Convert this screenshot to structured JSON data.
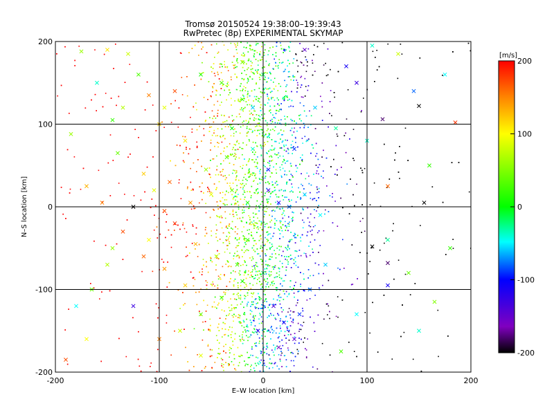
{
  "chart_data": {
    "type": "scatter",
    "title": "Tromsø 20150524 19:38:00–19:39:43",
    "subtitle": "RwPretec (8p) EXPERIMENTAL SKYMAP",
    "xlabel": "E–W location [km]",
    "ylabel": "N–S location [km]",
    "xlim": [
      -200,
      200
    ],
    "ylim": [
      -200,
      200
    ],
    "x_ticks": [
      "-200",
      "-100",
      "0",
      "100",
      "200"
    ],
    "y_ticks": [
      "-200",
      "-100",
      "0",
      "100",
      "200"
    ],
    "grid": true,
    "colorbar": {
      "label": "[m/s]",
      "range": [
        -200,
        200
      ],
      "ticks": [
        "200",
        "100",
        "0",
        "-100",
        "-200"
      ],
      "colors": [
        "#000000",
        "#8000c0",
        "#0000ff",
        "#00ffff",
        "#00ff00",
        "#ffff00",
        "#ff8000",
        "#ff0000"
      ]
    },
    "series": [
      {
        "marker": "x",
        "points": [
          [
            -130,
            185,
            80
          ],
          [
            -150,
            190,
            110
          ],
          [
            -175,
            188,
            60
          ],
          [
            -160,
            150,
            -40
          ],
          [
            -145,
            105,
            20
          ],
          [
            -185,
            88,
            60
          ],
          [
            -120,
            160,
            30
          ],
          [
            -110,
            135,
            150
          ],
          [
            -95,
            120,
            90
          ],
          [
            -85,
            140,
            170
          ],
          [
            -60,
            160,
            10
          ],
          [
            -40,
            150,
            30
          ],
          [
            -20,
            130,
            20
          ],
          [
            -10,
            120,
            -60
          ],
          [
            -100,
            100,
            120
          ],
          [
            -140,
            65,
            40
          ],
          [
            -170,
            25,
            130
          ],
          [
            -155,
            5,
            150
          ],
          [
            -125,
            0,
            -200
          ],
          [
            -105,
            20,
            90
          ],
          [
            -90,
            30,
            160
          ],
          [
            -70,
            5,
            140
          ],
          [
            -50,
            15,
            90
          ],
          [
            -30,
            20,
            40
          ],
          [
            -15,
            5,
            10
          ],
          [
            5,
            20,
            -130
          ],
          [
            15,
            5,
            -110
          ],
          [
            25,
            0,
            -80
          ],
          [
            40,
            15,
            -60
          ],
          [
            55,
            -10,
            -50
          ],
          [
            -135,
            -30,
            170
          ],
          [
            -145,
            -50,
            60
          ],
          [
            -115,
            -60,
            160
          ],
          [
            -95,
            -75,
            140
          ],
          [
            -75,
            -95,
            120
          ],
          [
            -180,
            -120,
            -50
          ],
          [
            -165,
            -100,
            40
          ],
          [
            -190,
            -185,
            170
          ],
          [
            -125,
            -120,
            -130
          ],
          [
            -100,
            -160,
            150
          ],
          [
            -80,
            -150,
            80
          ],
          [
            -60,
            -130,
            40
          ],
          [
            -40,
            -110,
            20
          ],
          [
            -20,
            -90,
            10
          ],
          [
            0,
            -80,
            -20
          ],
          [
            10,
            -120,
            -140
          ],
          [
            20,
            -140,
            -110
          ],
          [
            30,
            -160,
            -150
          ],
          [
            45,
            -100,
            -80
          ],
          [
            60,
            -70,
            -60
          ],
          [
            90,
            -130,
            -50
          ],
          [
            120,
            -95,
            -110
          ],
          [
            105,
            -48,
            -200
          ],
          [
            120,
            -68,
            -180
          ],
          [
            150,
            -150,
            -40
          ],
          [
            165,
            -115,
            50
          ],
          [
            180,
            -50,
            20
          ],
          [
            155,
            5,
            -200
          ],
          [
            185,
            102,
            180
          ],
          [
            150,
            122,
            -200
          ],
          [
            115,
            106,
            -180
          ],
          [
            120,
            25,
            160
          ],
          [
            145,
            140,
            -80
          ],
          [
            175,
            160,
            -50
          ],
          [
            160,
            50,
            20
          ],
          [
            120,
            -40,
            -30
          ],
          [
            100,
            80,
            -40
          ],
          [
            80,
            170,
            -110
          ],
          [
            90,
            150,
            -130
          ],
          [
            40,
            190,
            -150
          ],
          [
            -110,
            -40,
            100
          ],
          [
            -85,
            -20,
            180
          ],
          [
            -65,
            -45,
            130
          ],
          [
            -45,
            -60,
            70
          ],
          [
            -25,
            -70,
            30
          ],
          [
            -5,
            -150,
            -120
          ],
          [
            15,
            -170,
            -160
          ],
          [
            35,
            -130,
            -90
          ],
          [
            -15,
            -40,
            20
          ],
          [
            -35,
            60,
            30
          ],
          [
            -55,
            45,
            60
          ],
          [
            -75,
            80,
            110
          ],
          [
            -115,
            40,
            120
          ],
          [
            -95,
            -5,
            170
          ],
          [
            30,
            70,
            -90
          ],
          [
            50,
            120,
            -60
          ],
          [
            70,
            95,
            -30
          ],
          [
            -20,
            175,
            50
          ],
          [
            0,
            160,
            -20
          ],
          [
            -30,
            95,
            0
          ],
          [
            130,
            185,
            80
          ],
          [
            140,
            -80,
            40
          ],
          [
            -170,
            -160,
            100
          ],
          [
            -150,
            -70,
            70
          ],
          [
            75,
            -175,
            30
          ],
          [
            105,
            195,
            -40
          ],
          [
            -135,
            120,
            70
          ],
          [
            -60,
            -180,
            90
          ],
          [
            5,
            45,
            -110
          ],
          [
            -10,
            70,
            -40
          ]
        ]
      },
      {
        "marker": "dot",
        "count": 4500,
        "description": "dense cloud of small point echoes, concentrated along a N–S band centred near x=0 km"
      }
    ]
  }
}
